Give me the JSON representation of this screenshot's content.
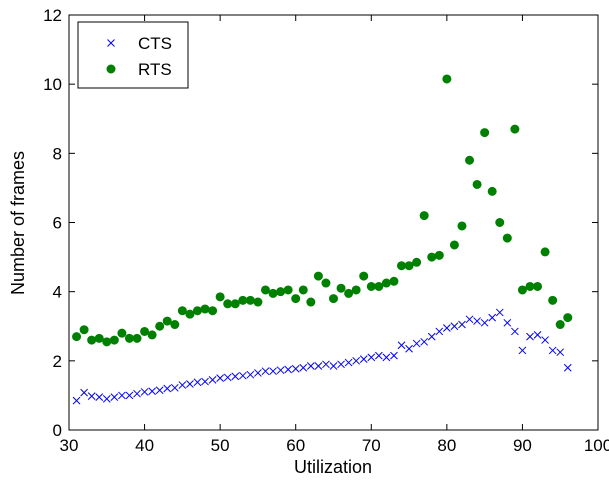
{
  "chart_data": {
    "type": "scatter",
    "xlabel": "Utilization",
    "ylabel": "Number of frames",
    "xlim": [
      30,
      100
    ],
    "ylim": [
      0,
      12
    ],
    "xticks": [
      30,
      40,
      50,
      60,
      70,
      80,
      90,
      100
    ],
    "yticks": [
      0,
      2,
      4,
      6,
      8,
      10,
      12
    ],
    "grid": false,
    "legend_position": "top-left",
    "series": [
      {
        "name": "CTS",
        "marker": "x",
        "color": "#0000ff",
        "points": [
          [
            31,
            0.85
          ],
          [
            32,
            1.08
          ],
          [
            33,
            0.98
          ],
          [
            34,
            0.95
          ],
          [
            35,
            0.9
          ],
          [
            36,
            0.95
          ],
          [
            37,
            1.0
          ],
          [
            38,
            1.0
          ],
          [
            39,
            1.05
          ],
          [
            40,
            1.1
          ],
          [
            41,
            1.12
          ],
          [
            42,
            1.15
          ],
          [
            43,
            1.2
          ],
          [
            44,
            1.22
          ],
          [
            45,
            1.3
          ],
          [
            46,
            1.33
          ],
          [
            47,
            1.38
          ],
          [
            48,
            1.4
          ],
          [
            49,
            1.45
          ],
          [
            50,
            1.5
          ],
          [
            51,
            1.52
          ],
          [
            52,
            1.55
          ],
          [
            53,
            1.57
          ],
          [
            54,
            1.6
          ],
          [
            55,
            1.65
          ],
          [
            56,
            1.7
          ],
          [
            57,
            1.7
          ],
          [
            58,
            1.73
          ],
          [
            59,
            1.75
          ],
          [
            60,
            1.77
          ],
          [
            61,
            1.8
          ],
          [
            62,
            1.85
          ],
          [
            63,
            1.85
          ],
          [
            64,
            1.9
          ],
          [
            65,
            1.85
          ],
          [
            66,
            1.9
          ],
          [
            67,
            1.95
          ],
          [
            68,
            2.0
          ],
          [
            69,
            2.05
          ],
          [
            70,
            2.1
          ],
          [
            71,
            2.15
          ],
          [
            72,
            2.1
          ],
          [
            73,
            2.15
          ],
          [
            74,
            2.45
          ],
          [
            75,
            2.35
          ],
          [
            76,
            2.5
          ],
          [
            77,
            2.55
          ],
          [
            78,
            2.7
          ],
          [
            79,
            2.85
          ],
          [
            80,
            2.95
          ],
          [
            81,
            3.0
          ],
          [
            82,
            3.05
          ],
          [
            83,
            3.2
          ],
          [
            84,
            3.15
          ],
          [
            85,
            3.1
          ],
          [
            86,
            3.25
          ],
          [
            87,
            3.4
          ],
          [
            88,
            3.1
          ],
          [
            89,
            2.85
          ],
          [
            90,
            2.3
          ],
          [
            91,
            2.7
          ],
          [
            92,
            2.75
          ],
          [
            93,
            2.6
          ],
          [
            94,
            2.3
          ],
          [
            95,
            2.25
          ],
          [
            96,
            1.8
          ]
        ]
      },
      {
        "name": "RTS",
        "marker": "o",
        "color": "#008000",
        "points": [
          [
            31,
            2.7
          ],
          [
            32,
            2.9
          ],
          [
            33,
            2.6
          ],
          [
            34,
            2.65
          ],
          [
            35,
            2.55
          ],
          [
            36,
            2.6
          ],
          [
            37,
            2.8
          ],
          [
            38,
            2.65
          ],
          [
            39,
            2.65
          ],
          [
            40,
            2.85
          ],
          [
            41,
            2.75
          ],
          [
            42,
            3.0
          ],
          [
            43,
            3.15
          ],
          [
            44,
            3.05
          ],
          [
            45,
            3.45
          ],
          [
            46,
            3.35
          ],
          [
            47,
            3.45
          ],
          [
            48,
            3.5
          ],
          [
            49,
            3.45
          ],
          [
            50,
            3.85
          ],
          [
            51,
            3.65
          ],
          [
            52,
            3.65
          ],
          [
            53,
            3.75
          ],
          [
            54,
            3.75
          ],
          [
            55,
            3.7
          ],
          [
            56,
            4.05
          ],
          [
            57,
            3.95
          ],
          [
            58,
            4.0
          ],
          [
            59,
            4.05
          ],
          [
            60,
            3.8
          ],
          [
            61,
            4.05
          ],
          [
            62,
            3.7
          ],
          [
            63,
            4.45
          ],
          [
            64,
            4.25
          ],
          [
            65,
            3.8
          ],
          [
            66,
            4.1
          ],
          [
            67,
            3.95
          ],
          [
            68,
            4.05
          ],
          [
            69,
            4.45
          ],
          [
            70,
            4.15
          ],
          [
            71,
            4.15
          ],
          [
            72,
            4.25
          ],
          [
            73,
            4.3
          ],
          [
            74,
            4.75
          ],
          [
            75,
            4.75
          ],
          [
            76,
            4.85
          ],
          [
            77,
            6.2
          ],
          [
            78,
            5.0
          ],
          [
            79,
            5.05
          ],
          [
            80,
            10.15
          ],
          [
            81,
            5.35
          ],
          [
            82,
            5.9
          ],
          [
            83,
            7.8
          ],
          [
            84,
            7.1
          ],
          [
            85,
            8.6
          ],
          [
            86,
            6.9
          ],
          [
            87,
            6.0
          ],
          [
            88,
            5.55
          ],
          [
            89,
            8.7
          ],
          [
            90,
            4.05
          ],
          [
            91,
            4.15
          ],
          [
            92,
            4.15
          ],
          [
            93,
            5.15
          ],
          [
            94,
            3.75
          ],
          [
            95,
            3.05
          ],
          [
            96,
            3.25
          ]
        ]
      }
    ]
  }
}
